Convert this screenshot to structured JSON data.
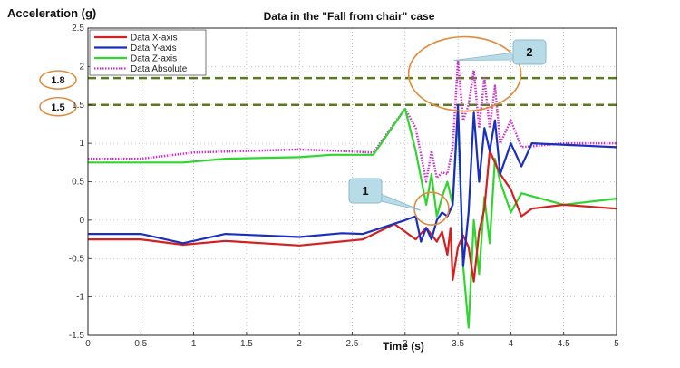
{
  "chart_data": {
    "type": "line",
    "title": "Data in the \"Fall from chair\" case",
    "xlabel": "Time (s)",
    "ylabel": "Acceleration (g)",
    "xlim": [
      0,
      5
    ],
    "ylim": [
      -1.5,
      2.5
    ],
    "xticks": [
      "0",
      "0.5",
      "1",
      "1.5",
      "2",
      "2.5",
      "3",
      "3.5",
      "4",
      "4.5",
      "5"
    ],
    "yticks": [
      "2.5",
      "2",
      "1.5",
      "1",
      "0.5",
      "0",
      "-0.5",
      "-1",
      "-1.5"
    ],
    "grid": true,
    "legend_position": "top-left",
    "series": [
      {
        "name": "Data X-axis",
        "color": "#d42020",
        "style": "solid",
        "x": [
          0,
          0.5,
          0.9,
          1.3,
          2.0,
          2.6,
          2.9,
          3.1,
          3.2,
          3.3,
          3.35,
          3.4,
          3.43,
          3.45,
          3.5,
          3.55,
          3.6,
          3.65,
          3.7,
          3.75,
          3.8,
          3.9,
          4.0,
          4.1,
          4.2,
          4.5,
          5.0
        ],
        "y": [
          -0.25,
          -0.25,
          -0.32,
          -0.27,
          -0.33,
          -0.25,
          -0.05,
          -0.25,
          -0.1,
          -0.28,
          -0.15,
          -0.45,
          -0.1,
          -0.78,
          -0.35,
          -0.2,
          -0.35,
          -0.8,
          -0.15,
          0.15,
          0.9,
          0.6,
          0.4,
          0.05,
          0.15,
          0.2,
          0.15
        ]
      },
      {
        "name": "Data Y-axis",
        "color": "#1a2fbf",
        "style": "solid",
        "x": [
          0,
          0.5,
          0.9,
          1.3,
          2.0,
          2.4,
          2.6,
          3.0,
          3.1,
          3.15,
          3.2,
          3.25,
          3.3,
          3.35,
          3.4,
          3.45,
          3.5,
          3.55,
          3.6,
          3.65,
          3.7,
          3.75,
          3.8,
          3.85,
          3.9,
          4.0,
          4.1,
          4.2,
          5.0
        ],
        "y": [
          -0.18,
          -0.18,
          -0.3,
          -0.18,
          -0.22,
          -0.17,
          -0.18,
          0.0,
          0.05,
          -0.28,
          -0.1,
          -0.25,
          0.0,
          0.1,
          0.05,
          0.2,
          1.5,
          -0.6,
          0.1,
          1.4,
          0.5,
          1.2,
          0.9,
          1.3,
          0.6,
          1.0,
          0.7,
          1.0,
          0.95
        ]
      },
      {
        "name": "Data Z-axis",
        "color": "#2ed62e",
        "style": "solid",
        "x": [
          0,
          0.5,
          0.9,
          1.3,
          2.0,
          2.3,
          2.7,
          3.0,
          3.1,
          3.2,
          3.25,
          3.3,
          3.35,
          3.4,
          3.45,
          3.5,
          3.55,
          3.6,
          3.65,
          3.7,
          3.75,
          3.8,
          3.85,
          3.9,
          4.0,
          4.1,
          4.5,
          5.0
        ],
        "y": [
          0.75,
          0.75,
          0.75,
          0.8,
          0.82,
          0.85,
          0.85,
          1.45,
          0.9,
          0.2,
          0.6,
          0.05,
          0.3,
          0.5,
          0.2,
          1.4,
          -0.6,
          -1.4,
          0.0,
          -0.7,
          0.3,
          -0.3,
          0.8,
          0.5,
          0.1,
          0.35,
          0.2,
          0.28
        ]
      },
      {
        "name": "Data Absolute",
        "color": "#cc33cc",
        "style": "dotted",
        "x": [
          0,
          0.5,
          1.0,
          1.5,
          2.0,
          2.4,
          2.7,
          3.0,
          3.1,
          3.2,
          3.25,
          3.3,
          3.35,
          3.4,
          3.45,
          3.5,
          3.55,
          3.6,
          3.65,
          3.7,
          3.75,
          3.8,
          3.85,
          3.9,
          4.0,
          4.1,
          4.5,
          5.0
        ],
        "y": [
          0.8,
          0.8,
          0.88,
          0.9,
          0.92,
          0.9,
          0.88,
          1.45,
          1.2,
          0.5,
          0.9,
          0.55,
          0.62,
          0.6,
          0.95,
          2.08,
          1.3,
          1.5,
          1.95,
          1.2,
          1.85,
          1.2,
          1.75,
          1.0,
          1.3,
          0.95,
          1.0,
          1.0
        ]
      }
    ],
    "reference_lines": [
      {
        "label": "1.8",
        "y": 1.85,
        "color": "#5a7a1e",
        "style": "dashed"
      },
      {
        "label": "1.5",
        "y": 1.5,
        "color": "#5a7a1e",
        "style": "dashed"
      }
    ],
    "annotations": [
      {
        "label": "1",
        "target_x": 3.25,
        "target_y": 0.15
      },
      {
        "label": "2",
        "target_x": 3.65,
        "target_y": 1.75
      }
    ]
  }
}
